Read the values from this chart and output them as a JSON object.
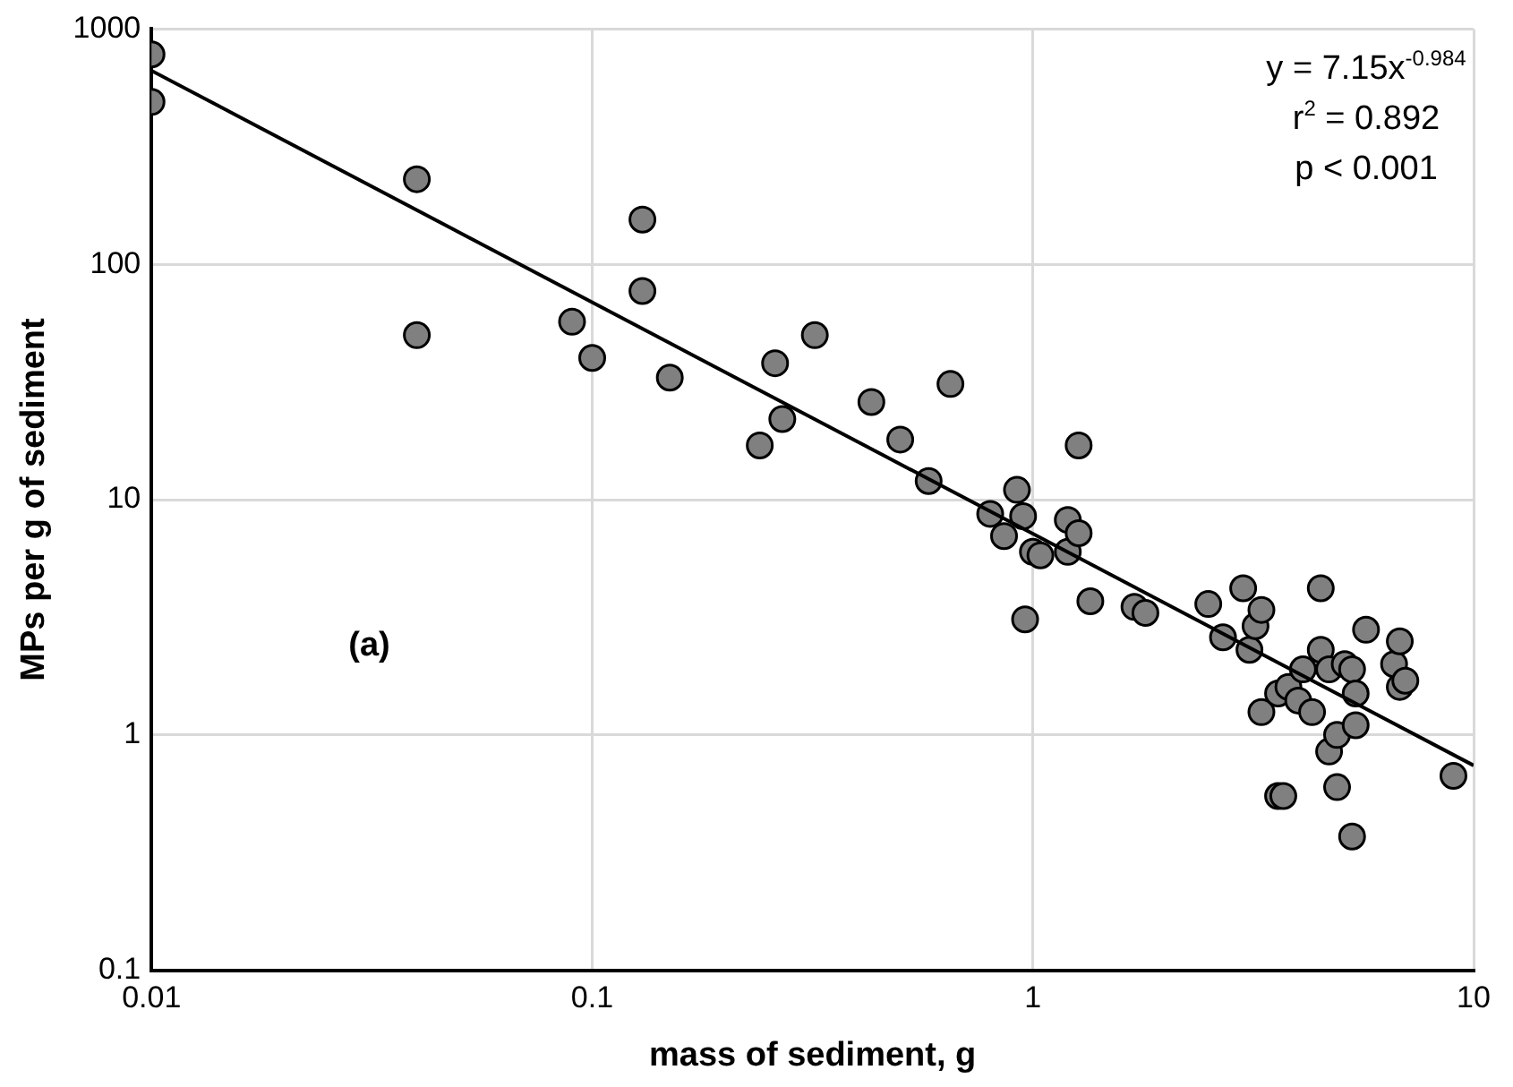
{
  "chart_data": {
    "type": "scatter",
    "xlabel": "mass of sediment, g",
    "ylabel": "MPs per g of sediment",
    "log": "xy",
    "grid": true,
    "legend": false,
    "marker": "circle",
    "xlim": [
      0.01,
      10
    ],
    "xticks": [
      0.01,
      0.1,
      1,
      10
    ],
    "ylim": [
      0.1,
      1000
    ],
    "yticks": [
      0.1,
      1,
      10,
      100,
      1000
    ],
    "annotations": [
      "y = 7.15x$^{-0.984}$",
      "r$^{2}$ = 0.892",
      "p < 0.001",
      "(a)"
    ],
    "series": [
      {
        "type": "scatter",
        "color": "#808080",
        "x": [
          0.01,
          0.01,
          0.04,
          0.04,
          0.09,
          0.1,
          0.13,
          0.13,
          0.15,
          0.24,
          0.26,
          0.27,
          0.32,
          0.43,
          0.5,
          0.58,
          0.65,
          0.8,
          0.86,
          0.92,
          0.95,
          0.96,
          1.0,
          1.04,
          1.2,
          1.2,
          1.27,
          1.27,
          1.35,
          1.7,
          1.8,
          2.5,
          2.7,
          3.0,
          3.1,
          3.2,
          3.3,
          3.3,
          3.6,
          3.6,
          3.7,
          3.8,
          4.0,
          4.1,
          4.3,
          4.5,
          4.5,
          4.7,
          4.7,
          4.9,
          4.9,
          5.1,
          5.3,
          5.3,
          5.4,
          5.4,
          5.7,
          6.6,
          6.8,
          6.8,
          9.0,
          7.0
        ],
        "values": [
          780,
          490,
          230,
          50,
          57,
          40,
          155,
          77,
          33,
          17,
          38,
          22,
          50,
          26,
          18,
          12,
          31,
          8.7,
          7,
          11,
          8.5,
          3.1,
          6,
          5.8,
          6,
          8.2,
          7.2,
          17,
          3.7,
          3.5,
          3.3,
          3.6,
          2.6,
          4.2,
          2.3,
          2.9,
          3.4,
          1.25,
          1.5,
          0.55,
          0.55,
          1.6,
          1.4,
          1.9,
          1.25,
          4.2,
          2.3,
          1.9,
          0.85,
          1.0,
          0.6,
          2.0,
          0.37,
          1.9,
          1.5,
          1.1,
          2.8,
          2.0,
          2.5,
          1.6,
          0.67,
          1.7
        ]
      },
      {
        "type": "line",
        "color": "#000000",
        "marker": "none",
        "x": [
          0.01,
          10
        ],
        "values": [
          665,
          0.742
        ]
      }
    ]
  }
}
